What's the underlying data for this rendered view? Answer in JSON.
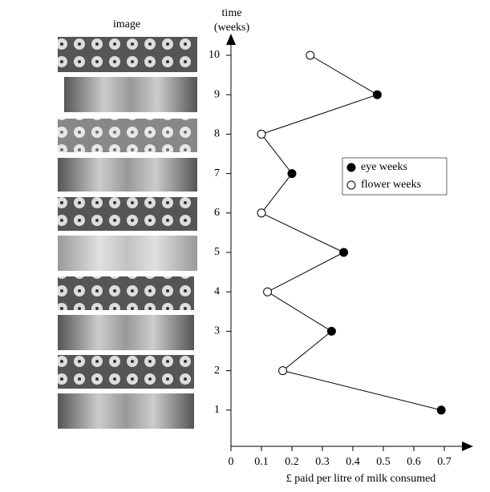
{
  "chart_data": {
    "type": "line",
    "image_header": "image",
    "y_label": [
      "time",
      "(weeks)"
    ],
    "x_label": "£ paid per litre of milk consumed",
    "xlim": [
      0,
      0.78
    ],
    "xticks": [
      0,
      0.1,
      0.2,
      0.3,
      0.4,
      0.5,
      0.6,
      0.7
    ],
    "ylim": [
      0,
      10.5
    ],
    "yticks": [
      1,
      2,
      3,
      4,
      5,
      6,
      7,
      8,
      9,
      10
    ],
    "line_color": "#000000",
    "series": [
      {
        "name": "eye weeks",
        "color": "#000000",
        "weeks": [
          1,
          3,
          5,
          7,
          9
        ],
        "values": [
          0.69,
          0.33,
          0.37,
          0.2,
          0.48
        ]
      },
      {
        "name": "flower weeks",
        "color": "#ffffff",
        "weeks": [
          2,
          4,
          6,
          8,
          10
        ],
        "values": [
          0.17,
          0.12,
          0.1,
          0.1,
          0.26
        ]
      }
    ]
  }
}
